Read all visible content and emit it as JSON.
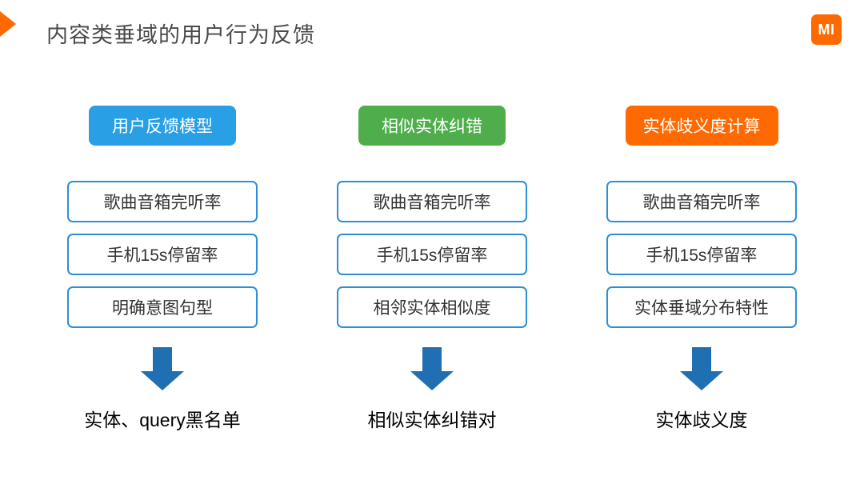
{
  "slide": {
    "title": "内容类垂域的用户行为反馈",
    "title_color": "#4a4a4a",
    "background": "#ffffff",
    "accent_triangle_color": "#ff6a00"
  },
  "logo": {
    "text": "MI",
    "bg_color": "#ff6a00",
    "text_color": "#ffffff"
  },
  "arrow": {
    "color": "#1f6fb2"
  },
  "columns": [
    {
      "header": "用户反馈模型",
      "header_bg": "#29a0e6",
      "box_border": "#2a8fd4",
      "box_text_color": "#333333",
      "items": [
        "歌曲音箱完听率",
        "手机15s停留率",
        "明确意图句型"
      ],
      "result": "实体、query黑名单"
    },
    {
      "header": "相似实体纠错",
      "header_bg": "#4fae4b",
      "box_border": "#2a8fd4",
      "box_text_color": "#333333",
      "items": [
        "歌曲音箱完听率",
        "手机15s停留率",
        "相邻实体相似度"
      ],
      "result": "相似实体纠错对"
    },
    {
      "header": "实体歧义度计算",
      "header_bg": "#ff6a00",
      "box_border": "#2a8fd4",
      "box_text_color": "#333333",
      "items": [
        "歌曲音箱完听率",
        "手机15s停留率",
        "实体垂域分布特性"
      ],
      "result": "实体歧义度"
    }
  ]
}
